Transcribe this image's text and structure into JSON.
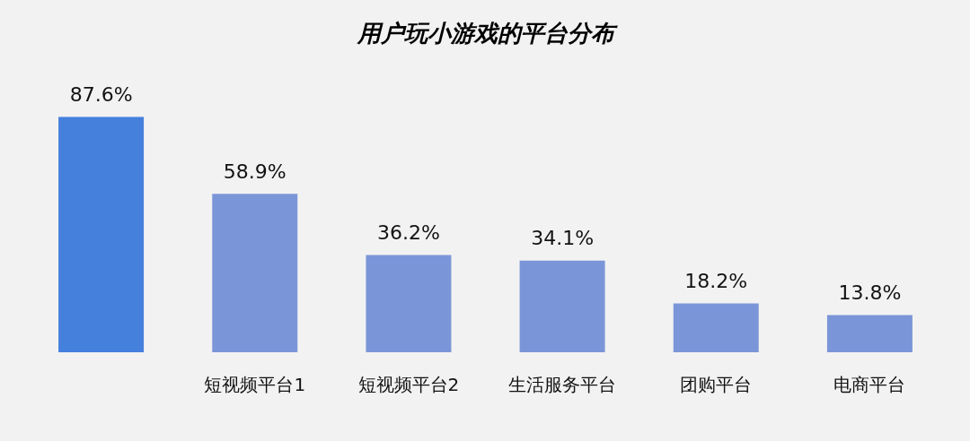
{
  "chart_data": {
    "type": "bar",
    "title": "用户玩小游戏的平台分布",
    "categories": [
      null,
      "短视频平台1",
      "短视频平台2",
      "生活服务平台",
      "团购平台",
      "电商平台"
    ],
    "values": [
      87.6,
      58.9,
      36.2,
      34.1,
      18.2,
      13.8
    ],
    "colors": [
      "#4580dd",
      "#7b96d8",
      "#7b96d8",
      "#7b96d8",
      "#7b96d8",
      "#7b96d8"
    ],
    "value_labels": [
      "87.6%",
      "58.9%",
      "36.2%",
      "34.1%",
      "18.2%",
      "13.8%"
    ]
  }
}
